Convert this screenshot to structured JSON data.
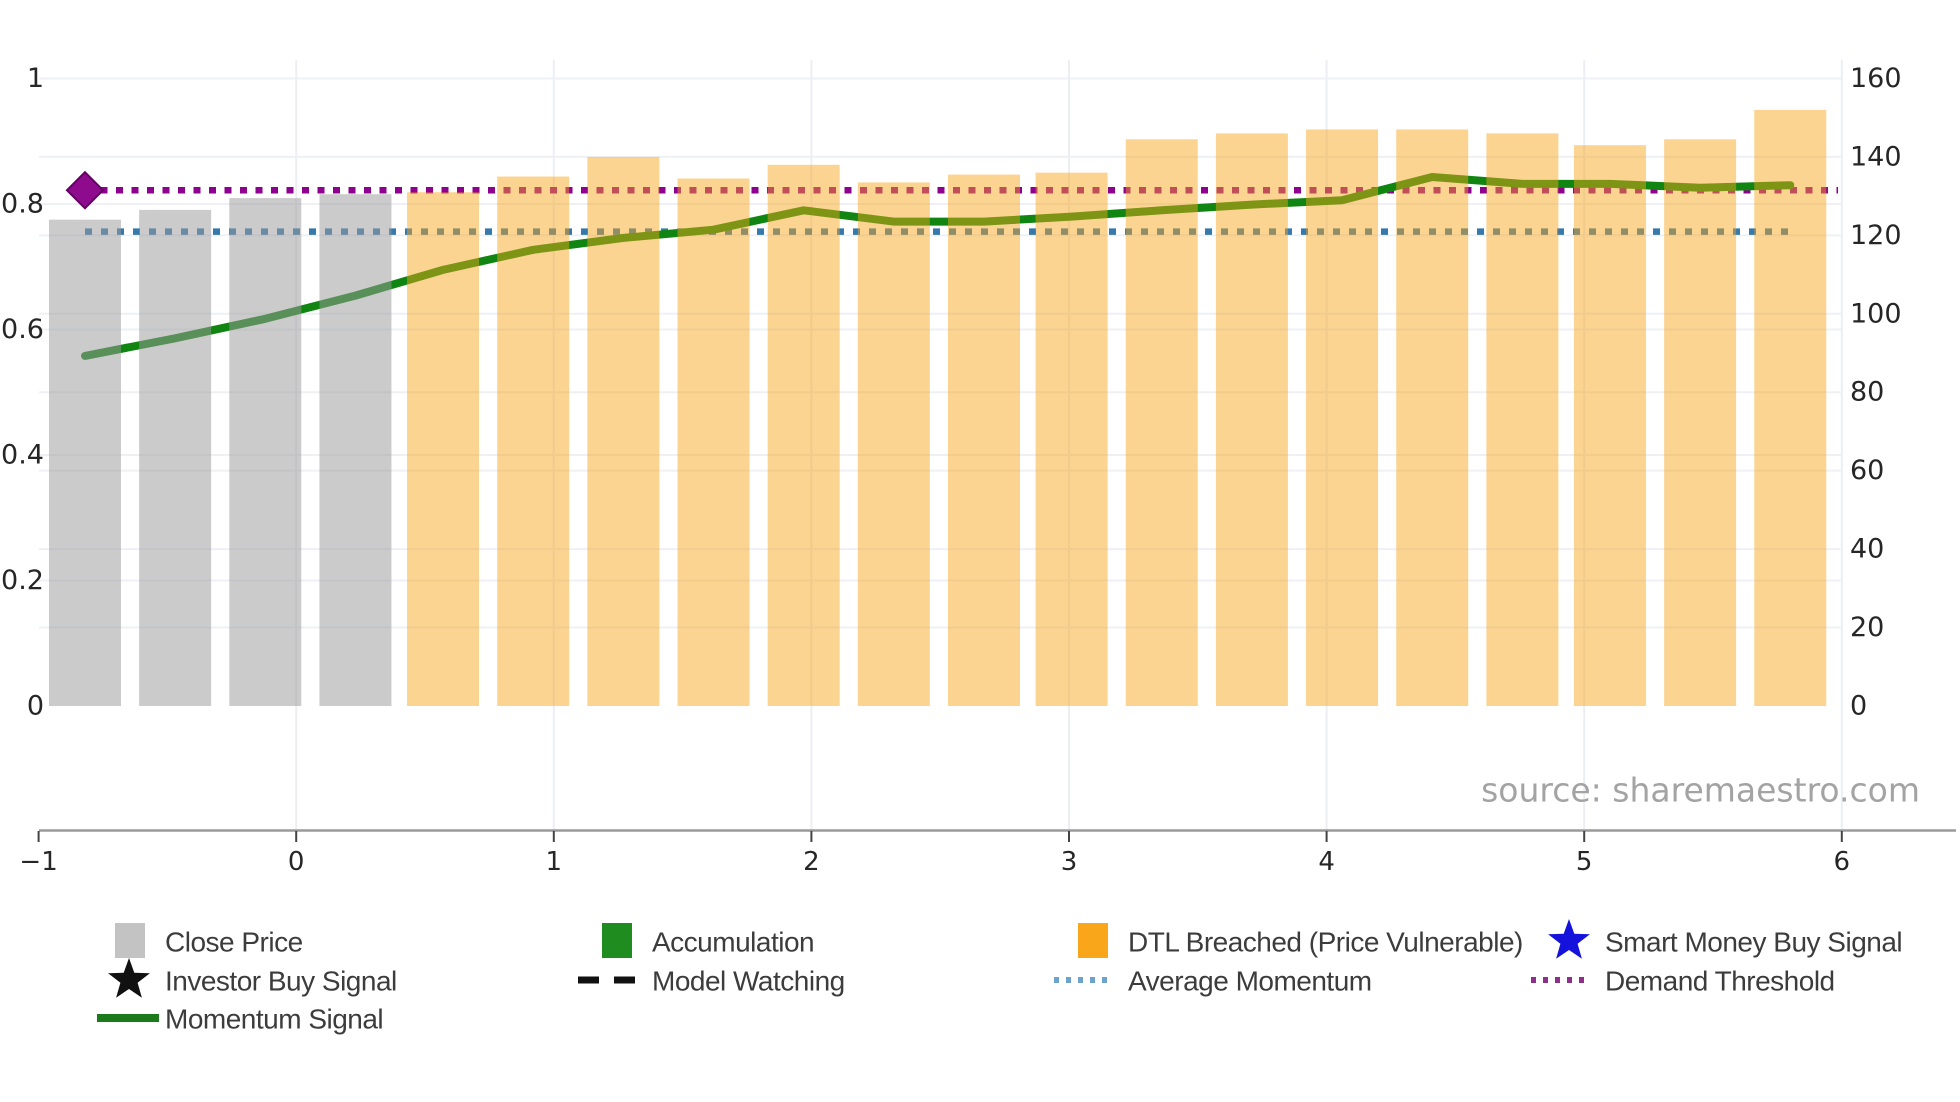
{
  "chart_data": {
    "type": "bar",
    "title": "",
    "x_axis": {
      "tick_labels": [
        "−1",
        "0",
        "1",
        "2",
        "3",
        "4",
        "5",
        "6"
      ],
      "tick_values": [
        -1,
        0,
        1,
        2,
        3,
        4,
        5,
        6
      ],
      "range": [
        -1.15,
        6.3
      ]
    },
    "left_axis": {
      "tick_labels": [
        "0",
        "0.2",
        "0.4",
        "0.6",
        "0.8",
        "1"
      ],
      "tick_values": [
        0,
        0.2,
        0.4,
        0.6,
        0.8,
        1
      ],
      "range": [
        0,
        1
      ]
    },
    "right_axis": {
      "tick_labels": [
        "0",
        "20",
        "40",
        "60",
        "80",
        "100",
        "120",
        "140",
        "160"
      ],
      "tick_values": [
        0,
        20,
        40,
        60,
        80,
        100,
        120,
        140,
        160
      ],
      "range": [
        0,
        160
      ]
    },
    "bars": {
      "close_price_name": "Close Price",
      "dtl_breached_name": "DTL Breached (Price Vulnerable)",
      "x": [
        -0.82,
        -0.47,
        -0.12,
        0.23,
        0.57,
        0.92,
        1.27,
        1.62,
        1.97,
        2.32,
        2.67,
        3.01,
        3.36,
        3.71,
        4.06,
        4.41,
        4.76,
        5.1,
        5.45,
        5.8
      ],
      "values": [
        124,
        126.5,
        129.5,
        130.5,
        131,
        135,
        140,
        134.5,
        138,
        133.5,
        135.5,
        136,
        144.5,
        146,
        147,
        147,
        146,
        143,
        144.5,
        152
      ],
      "states": [
        "close",
        "close",
        "close",
        "close",
        "dtl",
        "dtl",
        "dtl",
        "dtl",
        "dtl",
        "dtl",
        "dtl",
        "dtl",
        "dtl",
        "dtl",
        "dtl",
        "dtl",
        "dtl",
        "dtl",
        "dtl",
        "dtl"
      ],
      "axis": "right"
    },
    "momentum_signal": {
      "name": "Momentum Signal",
      "axis": "left",
      "values": [
        0.558,
        0.586,
        0.617,
        0.654,
        0.695,
        0.727,
        0.746,
        0.759,
        0.79,
        0.772,
        0.772,
        0.78,
        0.79,
        0.799,
        0.806,
        0.843,
        0.832,
        0.832,
        0.826,
        0.83
      ]
    },
    "average_momentum": {
      "name": "Average Momentum",
      "value": 0.756
    },
    "demand_threshold": {
      "name": "Demand Threshold",
      "value": 0.822
    },
    "buy_marker": {
      "shape": "diamond",
      "x": -0.82,
      "value": 0.822
    }
  },
  "colors": {
    "close_bar": "rgba(155,155,155,0.52)",
    "dtl_bar": "rgba(247,166,28,0.48)",
    "momentum_line": "#118511",
    "average_momentum_line": "#3579ad",
    "demand_threshold_line": "#8e008e",
    "diamond_fill": "#8e0b8e",
    "diamond_edge": "#640064",
    "grid": "#eef0f6",
    "vgrid": "#eceef4",
    "spine": "#9a9a9a",
    "tick_label": "#262626",
    "legend_text": "#3c3c3c",
    "source_text": "#a3a3a3"
  },
  "legend": {
    "items": [
      {
        "label": "Close Price",
        "marker": "square",
        "color": "#c3c3c3",
        "col": 0,
        "row": 0
      },
      {
        "label": "Accumulation",
        "marker": "square",
        "color": "#1e8c1e",
        "col": 1,
        "row": 0
      },
      {
        "label": "DTL Breached (Price Vulnerable)",
        "marker": "square",
        "color": "#f9a61a",
        "col": 2,
        "row": 0
      },
      {
        "label": "Smart Money Buy Signal",
        "marker": "star",
        "color": "#1512dc",
        "col": 3,
        "row": 0
      },
      {
        "label": "Investor Buy Signal",
        "marker": "star",
        "color": "#111111",
        "col": 0,
        "row": 1
      },
      {
        "label": "Model Watching",
        "marker": "dashes",
        "color": "#111111",
        "col": 1,
        "row": 1
      },
      {
        "label": "Average Momentum",
        "marker": "dots",
        "color": "#6ba3cc",
        "col": 2,
        "row": 1
      },
      {
        "label": "Demand Threshold",
        "marker": "dots",
        "color": "#8e2f8a",
        "col": 3,
        "row": 1
      },
      {
        "label": "Momentum Signal",
        "marker": "line",
        "color": "#1b7a1b",
        "col": 0,
        "row": 2
      }
    ]
  },
  "source_note": "source: sharemaestro.com"
}
